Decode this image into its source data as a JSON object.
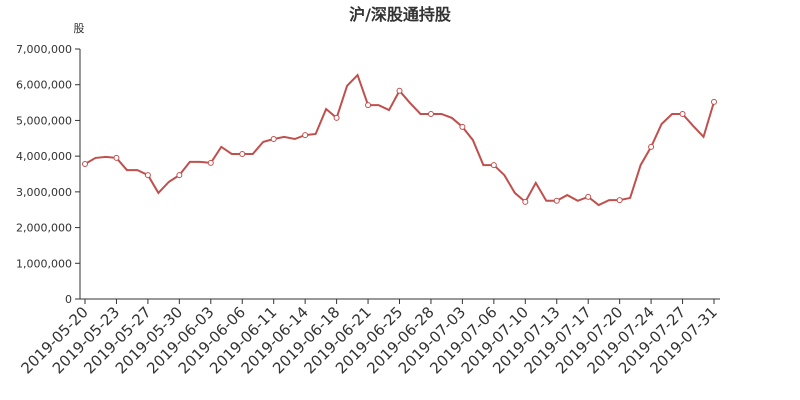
{
  "chart_data": {
    "type": "line",
    "title": "沪/深股通持股",
    "y_label": "股",
    "categories": [
      "2019-05-20",
      null,
      null,
      "2019-05-23",
      null,
      null,
      "2019-05-27",
      null,
      null,
      "2019-05-30",
      null,
      null,
      "2019-06-03",
      null,
      null,
      "2019-06-06",
      null,
      null,
      "2019-06-11",
      null,
      null,
      "2019-06-14",
      null,
      null,
      "2019-06-18",
      null,
      null,
      "2019-06-21",
      null,
      null,
      "2019-06-25",
      null,
      null,
      "2019-06-28",
      null,
      null,
      "2019-07-03",
      null,
      null,
      "2019-07-06",
      null,
      null,
      "2019-07-10",
      null,
      null,
      "2019-07-13",
      null,
      null,
      "2019-07-17",
      null,
      null,
      "2019-07-20",
      null,
      null,
      "2019-07-24",
      null,
      null,
      "2019-07-27",
      null,
      null,
      "2019-07-31"
    ],
    "values": [
      3780000,
      3950000,
      3980000,
      3950000,
      3610000,
      3610000,
      3470000,
      2970000,
      3280000,
      3470000,
      3840000,
      3840000,
      3810000,
      4260000,
      4060000,
      4060000,
      4060000,
      4400000,
      4480000,
      4540000,
      4480000,
      4590000,
      4620000,
      5320000,
      5070000,
      5970000,
      6270000,
      5430000,
      5430000,
      5290000,
      5830000,
      5490000,
      5180000,
      5180000,
      5180000,
      5070000,
      4820000,
      4450000,
      3750000,
      3750000,
      3470000,
      2970000,
      2720000,
      3250000,
      2750000,
      2750000,
      2910000,
      2750000,
      2860000,
      2630000,
      2770000,
      2770000,
      2830000,
      3750000,
      4260000,
      4900000,
      5180000,
      5180000,
      4850000,
      4540000,
      5520000
    ],
    "color": "#c0504d",
    "ylim": [
      0,
      7000000
    ],
    "yticks": [
      0,
      {
        "value": 1000000,
        "label": "1,000,000"
      },
      {
        "value": 2000000,
        "label": "2,000,000"
      },
      {
        "value": 3000000,
        "label": "3,000,000"
      },
      {
        "value": 4000000,
        "label": "4,000,000"
      },
      {
        "value": 5000000,
        "label": "5,000,000"
      },
      {
        "value": 6000000,
        "label": "6,000,000"
      },
      {
        "value": 7000000,
        "label": "7,000,000"
      }
    ],
    "grid": false
  }
}
